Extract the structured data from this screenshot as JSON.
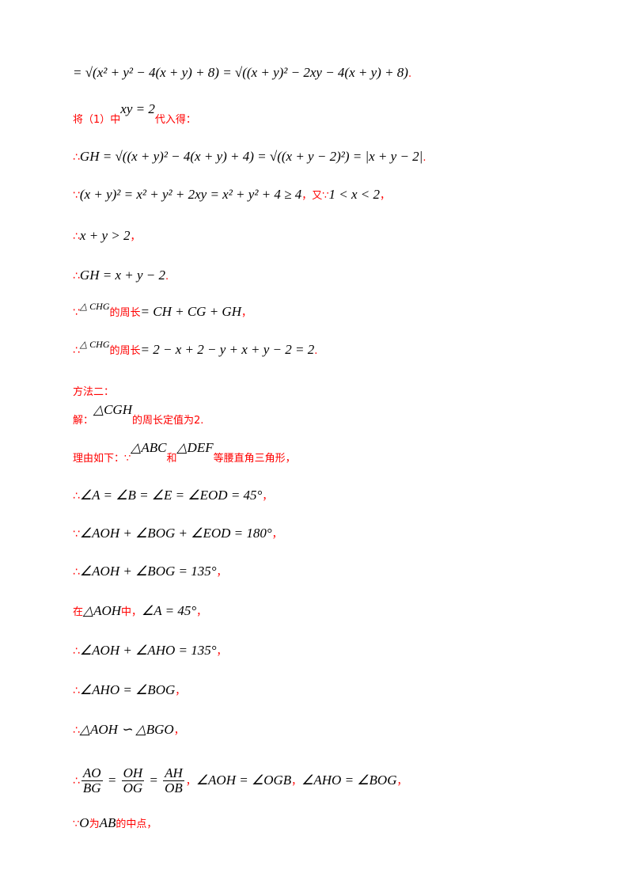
{
  "lines": [
    {
      "id": "l1",
      "parts": [
        {
          "t": "math",
          "v": "= √(x² + y² − 4(x + y) + 8) = √((x + y)² − 2xy − 4(x + y) + 8)"
        },
        {
          "t": "text",
          "v": "."
        }
      ]
    },
    {
      "id": "l2",
      "prefix": "将（1）中",
      "math": "xy = 2",
      "suffix": "代入得："
    },
    {
      "id": "l3",
      "sym": "∴",
      "math": "GH = √((x + y)² − 4(x + y) + 4) = √((x + y − 2)²) = |x + y − 2|",
      "suffix": "."
    },
    {
      "id": "l4",
      "sym": "∵",
      "math": "(x + y)² = x² + y² + 2xy = x² + y² + 4 ≥ 4",
      "mid": "，又∵",
      "math2": "1 < x < 2",
      "suffix": "，"
    },
    {
      "id": "l5",
      "sym": "∴",
      "math": "x + y > 2",
      "suffix": "，"
    },
    {
      "id": "l6",
      "sym": "∴",
      "math": "GH = x + y − 2",
      "suffix": "."
    },
    {
      "id": "l7",
      "sym": "∵",
      "math_small": "△ CHG",
      "red": "的周长",
      "math": "= CH + CG + GH",
      "suffix": "，"
    },
    {
      "id": "l8",
      "sym": "∴",
      "math_small": "△ CHG",
      "red": "的周长",
      "math": "= 2 − x + 2 − y + x + y − 2 = 2",
      "suffix": "."
    },
    {
      "id": "l9",
      "red": "方法二："
    },
    {
      "id": "l10",
      "prefix": "解：",
      "math": "△CGH",
      "red": "的周长定值为2."
    },
    {
      "id": "l11",
      "prefix": "理由如下：∵",
      "math": "△ABC",
      "mid": "和",
      "math2": "△DEF",
      "red": "等腰直角三角形，"
    },
    {
      "id": "l12",
      "sym": "∴",
      "math": "∠A = ∠B = ∠E = ∠EOD = 45°",
      "suffix": "，"
    },
    {
      "id": "l13",
      "sym": "∵",
      "math": "∠AOH + ∠BOG + ∠EOD = 180°",
      "suffix": "，"
    },
    {
      "id": "l14",
      "sym": "∴",
      "math": "∠AOH + ∠BOG = 135°",
      "suffix": "，"
    },
    {
      "id": "l15",
      "prefix": "在",
      "math": "△AOH",
      "mid": "中，",
      "math2": "∠A = 45°",
      "suffix": "，"
    },
    {
      "id": "l16",
      "sym": "∴",
      "math": "∠AOH + ∠AHO = 135°",
      "suffix": "，"
    },
    {
      "id": "l17",
      "sym": "∴",
      "math": "∠AHO = ∠BOG",
      "suffix": "，"
    },
    {
      "id": "l18",
      "sym": "∴",
      "math": "△AOH ∽ △BGO",
      "suffix": "，"
    },
    {
      "id": "l19",
      "sym": "∴",
      "fracs": [
        [
          "AO",
          "BG"
        ],
        [
          "OH",
          "OG"
        ],
        [
          "AH",
          "OB"
        ]
      ],
      "mid": "，",
      "math2": "∠AOH = ∠OGB",
      "mid2": "，",
      "math3": "∠AHO = ∠BOG",
      "suffix": "，"
    },
    {
      "id": "l20",
      "prefix": "∵",
      "math": "O",
      "mid": "为",
      "math2": "AB",
      "red": "的中点，"
    }
  ]
}
